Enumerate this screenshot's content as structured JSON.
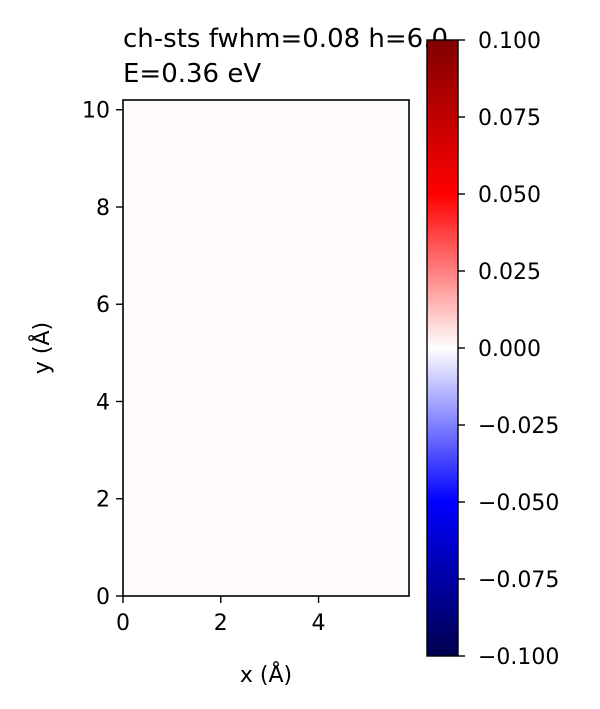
{
  "chart_data": {
    "type": "heatmap",
    "title_lines": [
      "ch-sts fwhm=0.08 h=6.0",
      "E=0.36 eV"
    ],
    "xlabel": "x (Å)",
    "ylabel": "y (Å)",
    "xlim": [
      0,
      5.85
    ],
    "ylim": [
      0,
      10.2
    ],
    "x_ticks": [
      "0",
      "2",
      "4"
    ],
    "y_ticks": [
      "0",
      "2",
      "4",
      "6",
      "8",
      "10"
    ],
    "x_tick_values": [
      0,
      2,
      4
    ],
    "y_tick_values": [
      0,
      2,
      4,
      6,
      8,
      10
    ],
    "field_value": 0.0,
    "colorbar": {
      "colormap": "seismic",
      "range": [
        -0.1,
        0.1
      ],
      "ticks": [
        "−0.100",
        "−0.075",
        "−0.050",
        "−0.025",
        "0.000",
        "0.025",
        "0.050",
        "0.075",
        "0.100"
      ],
      "tick_values": [
        -0.1,
        -0.075,
        -0.05,
        -0.025,
        0.0,
        0.025,
        0.05,
        0.075,
        0.1
      ]
    },
    "grid": false
  },
  "colors": {
    "field_fill": "#fffafd",
    "axis": "#000000"
  }
}
